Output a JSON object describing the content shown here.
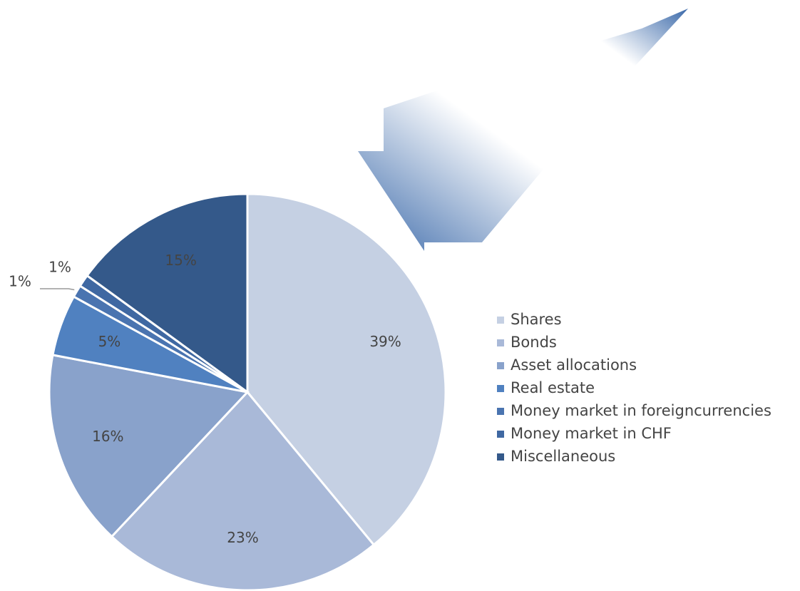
{
  "chart_data": {
    "type": "pie",
    "categories": [
      "Shares",
      "Bonds",
      "Asset allocations",
      "Real estate",
      "Money market in foreigncurrencies",
      "Money market in CHF",
      "Miscellaneous"
    ],
    "values": [
      39,
      23,
      16,
      5,
      1,
      1,
      15
    ],
    "value_labels": [
      "39%",
      "23%",
      "16%",
      "5%",
      "1%",
      "1%",
      "15%"
    ],
    "colors": [
      "#c5d0e3",
      "#a9b9d8",
      "#89a2cb",
      "#5081c0",
      "#4a74b0",
      "#3f68a2",
      "#34598a"
    ],
    "legend": "right"
  }
}
